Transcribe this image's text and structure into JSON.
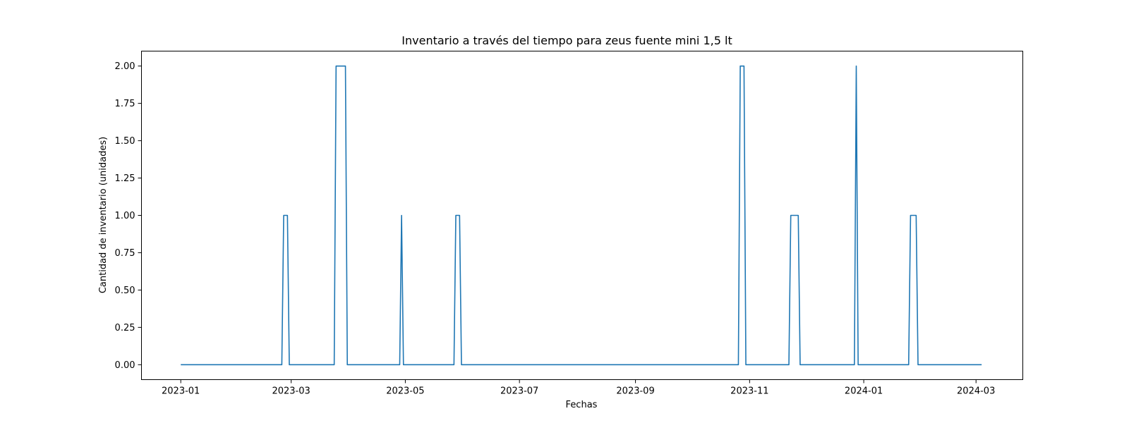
{
  "chart_data": {
    "type": "line",
    "title": "Inventario a través del tiempo para zeus fuente mini 1,5 lt",
    "xlabel": "Fechas",
    "ylabel": "Cantidad de inventario (unidades)",
    "xlim": [
      "2022-12-11",
      "2024-03-26"
    ],
    "ylim": [
      -0.1,
      2.1
    ],
    "x_ticks": [
      "2023-01",
      "2023-03",
      "2023-05",
      "2023-07",
      "2023-09",
      "2023-11",
      "2024-01",
      "2024-03"
    ],
    "y_ticks": [
      "0.00",
      "0.25",
      "0.50",
      "0.75",
      "1.00",
      "1.25",
      "1.50",
      "1.75",
      "2.00"
    ],
    "grid": false,
    "series": [
      {
        "color": "#1f77b4",
        "x": [
          "2023-01-01",
          "2023-02-24",
          "2023-02-25",
          "2023-02-27",
          "2023-02-28",
          "2023-03-24",
          "2023-03-25",
          "2023-03-30",
          "2023-03-31",
          "2023-04-28",
          "2023-04-29",
          "2023-04-30",
          "2023-05-27",
          "2023-05-28",
          "2023-05-30",
          "2023-05-31",
          "2023-10-26",
          "2023-10-27",
          "2023-10-29",
          "2023-10-30",
          "2023-11-22",
          "2023-11-23",
          "2023-11-27",
          "2023-11-28",
          "2023-12-27",
          "2023-12-28",
          "2023-12-29",
          "2024-01-25",
          "2024-01-26",
          "2024-01-29",
          "2024-01-30",
          "2024-03-04"
        ],
        "y": [
          0,
          0,
          1,
          1,
          0,
          0,
          2,
          2,
          0,
          0,
          1,
          0,
          0,
          1,
          1,
          0,
          0,
          2,
          2,
          0,
          0,
          1,
          1,
          0,
          0,
          2,
          0,
          0,
          1,
          1,
          0,
          0
        ]
      }
    ]
  }
}
